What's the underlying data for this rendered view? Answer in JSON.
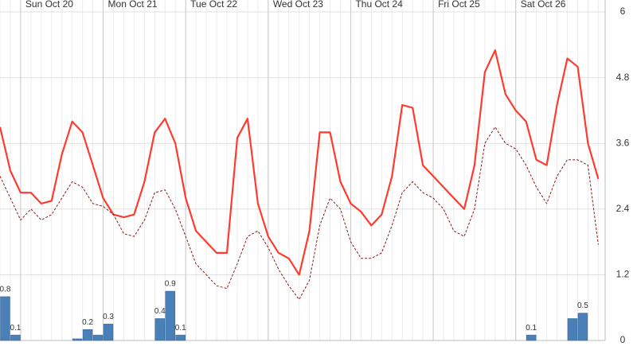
{
  "chart_data": {
    "type": "line",
    "xlim": [
      -6,
      170
    ],
    "xticks": [
      {
        "value": 0,
        "label": "Sun Oct 20"
      },
      {
        "value": 24,
        "label": "Mon Oct 21"
      },
      {
        "value": 48,
        "label": "Tue Oct 22"
      },
      {
        "value": 72,
        "label": "Wed Oct 23"
      },
      {
        "value": 96,
        "label": "Thu Oct 24"
      },
      {
        "value": 120,
        "label": "Fri Oct 25"
      },
      {
        "value": 144,
        "label": "Sat Oct 26"
      }
    ],
    "ylim": [
      0,
      6
    ],
    "yticks": [
      0,
      1.2,
      2.4,
      3.6,
      4.8,
      6
    ],
    "grid": true,
    "x": [
      -6,
      -3,
      0,
      3,
      6,
      9,
      12,
      15,
      18,
      21,
      24,
      27,
      30,
      33,
      36,
      39,
      42,
      45,
      48,
      51,
      54,
      57,
      60,
      63,
      66,
      69,
      72,
      75,
      78,
      81,
      84,
      87,
      90,
      93,
      96,
      99,
      102,
      105,
      108,
      111,
      114,
      117,
      120,
      123,
      126,
      129,
      132,
      135,
      138,
      141,
      144,
      147,
      150,
      153,
      156,
      159,
      162,
      165,
      168
    ],
    "series": [
      {
        "color": "#ff3b30",
        "dashed": false,
        "values": [
          3.9,
          3.1,
          2.7,
          2.7,
          2.5,
          2.55,
          3.4,
          4.0,
          3.8,
          3.2,
          2.6,
          2.3,
          2.25,
          2.3,
          2.9,
          3.8,
          4.05,
          3.6,
          2.6,
          2.0,
          1.8,
          1.6,
          1.6,
          3.7,
          4.05,
          2.5,
          1.9,
          1.6,
          1.5,
          1.2,
          2.0,
          3.8,
          3.8,
          2.9,
          2.5,
          2.35,
          2.1,
          2.3,
          3.0,
          4.3,
          4.25,
          3.2,
          3.0,
          2.8,
          2.6,
          2.4,
          3.2,
          4.9,
          5.3,
          4.5,
          4.2,
          4.0,
          3.3,
          3.2,
          4.3,
          5.15,
          5.0,
          3.6,
          2.95
        ]
      },
      {
        "color": "#8b1a1a",
        "dashed": true,
        "values": [
          3.0,
          2.6,
          2.2,
          2.4,
          2.2,
          2.3,
          2.6,
          2.9,
          2.8,
          2.5,
          2.45,
          2.3,
          1.95,
          1.9,
          2.2,
          2.7,
          2.75,
          2.4,
          1.9,
          1.4,
          1.2,
          1.0,
          0.95,
          1.4,
          1.9,
          2.0,
          1.7,
          1.3,
          1.0,
          0.75,
          1.1,
          2.1,
          2.6,
          2.4,
          1.8,
          1.5,
          1.5,
          1.6,
          2.1,
          2.7,
          2.9,
          2.7,
          2.6,
          2.4,
          2.0,
          1.9,
          2.4,
          3.6,
          3.9,
          3.6,
          3.5,
          3.2,
          2.8,
          2.5,
          3.0,
          3.3,
          3.3,
          3.2,
          1.75
        ]
      }
    ],
    "bars": {
      "color": "#4a80b8",
      "x": [
        -6,
        -3,
        15,
        18,
        21,
        24,
        39,
        42,
        45,
        147,
        159,
        162
      ],
      "values": [
        0.8,
        0.1,
        0.03,
        0.2,
        0.1,
        0.3,
        0.4,
        0.9,
        0.1,
        0.1,
        0.4,
        0.5
      ],
      "value_labels": [
        "0.8",
        "0.1",
        null,
        "0.2",
        null,
        "0.3",
        "0.4",
        "0.9",
        "0.1",
        "0.1",
        null,
        "0.5"
      ]
    }
  }
}
